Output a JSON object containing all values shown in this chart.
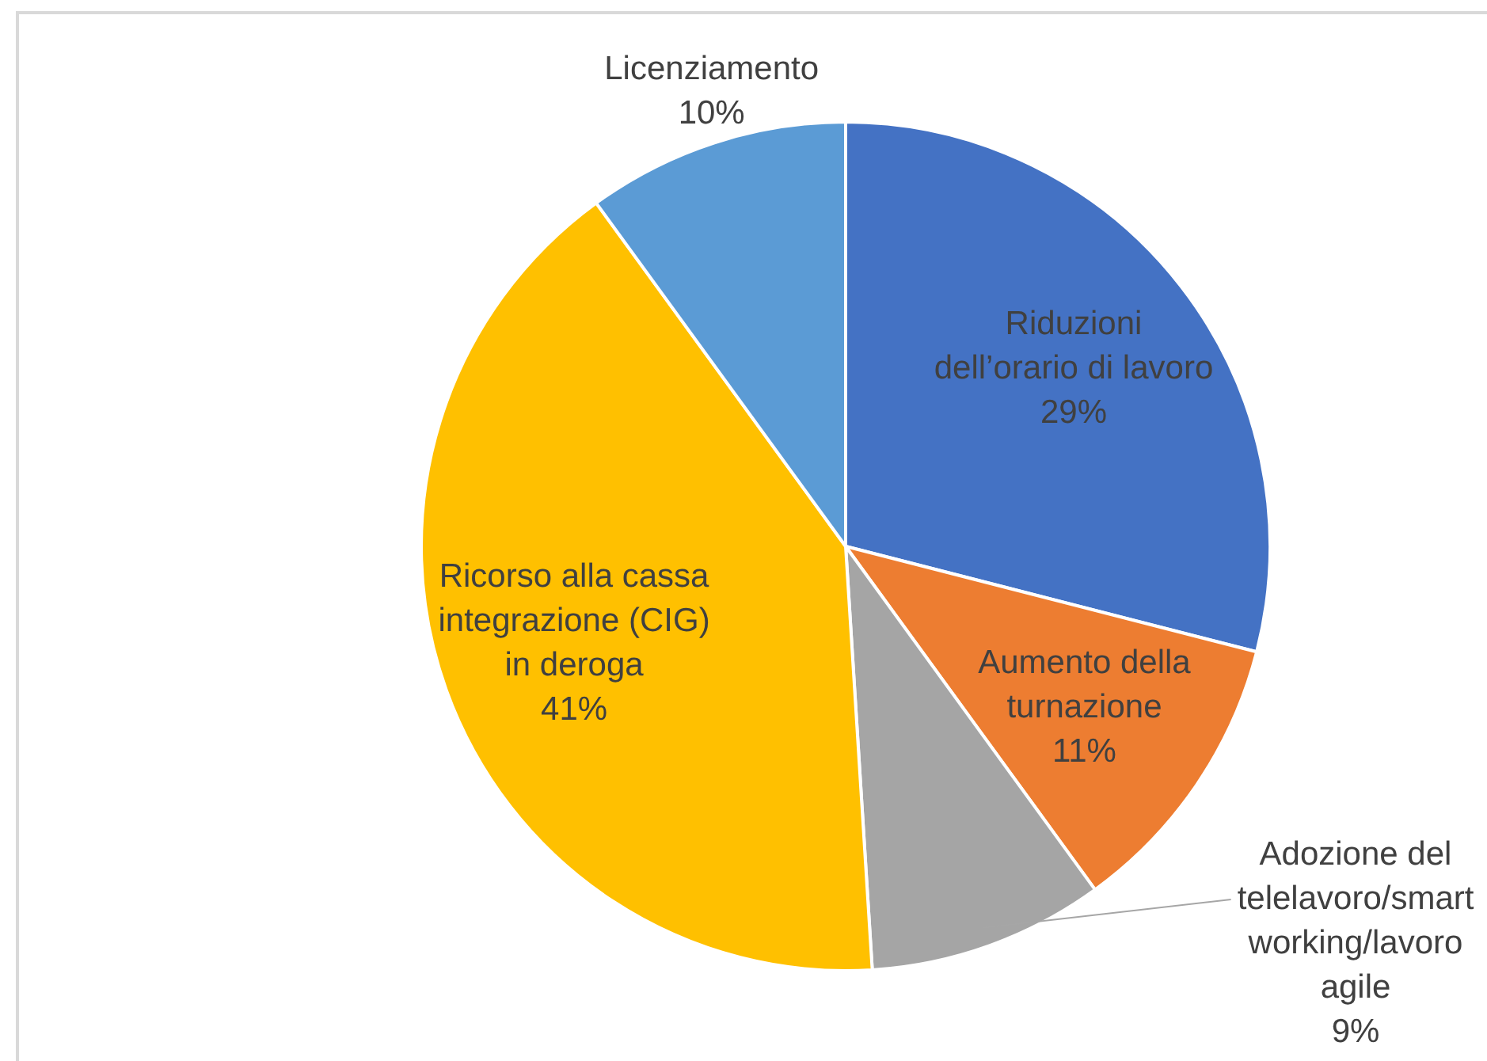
{
  "chart_data": {
    "type": "pie",
    "categories": [
      "Riduzioni\ndell’orario di lavoro",
      "Aumento della\nturnazione",
      "Adozione del\ntelelavoro/smart\nworking/lavoro\nagile",
      "Ricorso alla cassa\nintegrazione (CIG)\nin deroga",
      "Licenziamento"
    ],
    "values": [
      29,
      11,
      9,
      41,
      10
    ],
    "value_labels": [
      "29%",
      "11%",
      "9%",
      "41%",
      "10%"
    ],
    "colors": [
      "#4472c4",
      "#ed7d31",
      "#a5a5a5",
      "#ffc000",
      "#5b9bd5"
    ]
  }
}
